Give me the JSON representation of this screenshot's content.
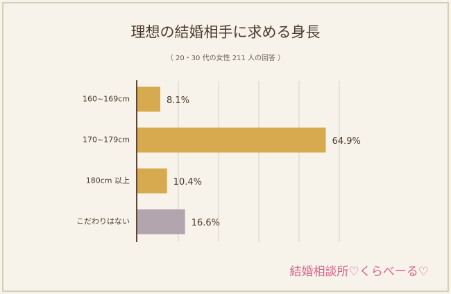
{
  "chart_data": {
    "type": "bar",
    "orientation": "horizontal",
    "title": "理想の結婚相手に求める身長",
    "subtitle": "（ 20・30 代の女性 211 人の回答 ）",
    "categories": [
      "160~169cm",
      "170~179cm",
      "180cm 以上",
      "こだわりはない"
    ],
    "values": [
      8.1,
      64.9,
      10.4,
      16.6
    ],
    "value_labels": [
      "8.1%",
      "64.9%",
      "10.4%",
      "16.6%"
    ],
    "colors": [
      "#d8aa4f",
      "#d8aa4f",
      "#d8aa4f",
      "#b3a5ad"
    ],
    "xlim": [
      0,
      100
    ],
    "logo": "結婚相談所♡くらべーる♡"
  }
}
